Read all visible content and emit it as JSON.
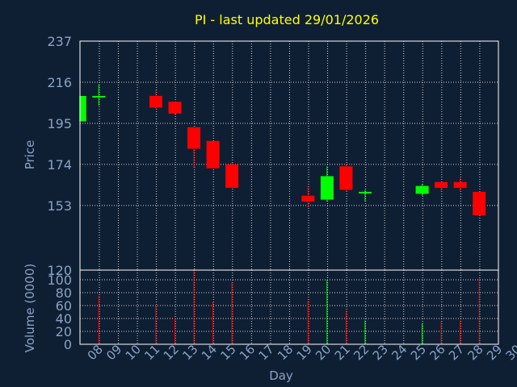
{
  "colors": {
    "background": "#0f1f33",
    "title": "#ffff00",
    "axis_text": "#8aa2c4",
    "grid": "#c8ccd4",
    "up": "#00ff00",
    "down": "#ff0000",
    "panel_border": "#ffffff"
  },
  "chart_data": {
    "type": "candlestick",
    "title": "PI - last updated 29/01/2026",
    "xlabel": "Day",
    "price_ylabel": "Price",
    "volume_ylabel": "Volume (0000)",
    "x_ticks": [
      "08",
      "09",
      "10",
      "11",
      "12",
      "13",
      "14",
      "15",
      "16",
      "17",
      "18",
      "19",
      "20",
      "21",
      "22",
      "23",
      "24",
      "25",
      "26",
      "27",
      "28",
      "29",
      "30"
    ],
    "price_ylim": [
      120,
      237
    ],
    "price_ticks": [
      120,
      153,
      174,
      195,
      216,
      237
    ],
    "volume_ylim": [
      0,
      115
    ],
    "volume_ticks": [
      0,
      20,
      40,
      60,
      80,
      100
    ],
    "grid": true,
    "candles": [
      {
        "day": 8,
        "open": 196,
        "close": 209,
        "high": 209,
        "low": 196
      },
      {
        "day": 9,
        "open": 209,
        "close": 209,
        "high": 215,
        "low": 204
      },
      {
        "day": 12,
        "open": 209,
        "close": 203,
        "high": 212,
        "low": 202
      },
      {
        "day": 13,
        "open": 206,
        "close": 200,
        "high": 206,
        "low": 199
      },
      {
        "day": 14,
        "open": 193,
        "close": 182,
        "high": 193,
        "low": 172
      },
      {
        "day": 15,
        "open": 186,
        "close": 172,
        "high": 186,
        "low": 172
      },
      {
        "day": 16,
        "open": 174,
        "close": 162,
        "high": 175,
        "low": 162
      },
      {
        "day": 20,
        "open": 158,
        "close": 155,
        "high": 163,
        "low": 152
      },
      {
        "day": 21,
        "open": 156,
        "close": 168,
        "high": 173,
        "low": 155
      },
      {
        "day": 22,
        "open": 173,
        "close": 161,
        "high": 174,
        "low": 160
      },
      {
        "day": 23,
        "open": 160,
        "close": 160,
        "high": 161,
        "low": 155
      },
      {
        "day": 26,
        "open": 159,
        "close": 163,
        "high": 164,
        "low": 158
      },
      {
        "day": 27,
        "open": 165,
        "close": 162,
        "high": 165,
        "low": 160
      },
      {
        "day": 28,
        "open": 165,
        "close": 162,
        "high": 167,
        "low": 160
      },
      {
        "day": 29,
        "open": 160,
        "close": 148,
        "high": 160,
        "low": 148
      }
    ],
    "volume": [
      {
        "day": 9,
        "value": 75,
        "dir": "down"
      },
      {
        "day": 12,
        "value": 62,
        "dir": "down"
      },
      {
        "day": 13,
        "value": 42,
        "dir": "down"
      },
      {
        "day": 14,
        "value": 115,
        "dir": "down"
      },
      {
        "day": 15,
        "value": 65,
        "dir": "down"
      },
      {
        "day": 16,
        "value": 97,
        "dir": "down"
      },
      {
        "day": 20,
        "value": 68,
        "dir": "down"
      },
      {
        "day": 21,
        "value": 100,
        "dir": "up"
      },
      {
        "day": 22,
        "value": 52,
        "dir": "down"
      },
      {
        "day": 23,
        "value": 37,
        "dir": "up"
      },
      {
        "day": 26,
        "value": 32,
        "dir": "up"
      },
      {
        "day": 27,
        "value": 35,
        "dir": "down"
      },
      {
        "day": 28,
        "value": 37,
        "dir": "down"
      },
      {
        "day": 29,
        "value": 102,
        "dir": "down"
      }
    ]
  }
}
